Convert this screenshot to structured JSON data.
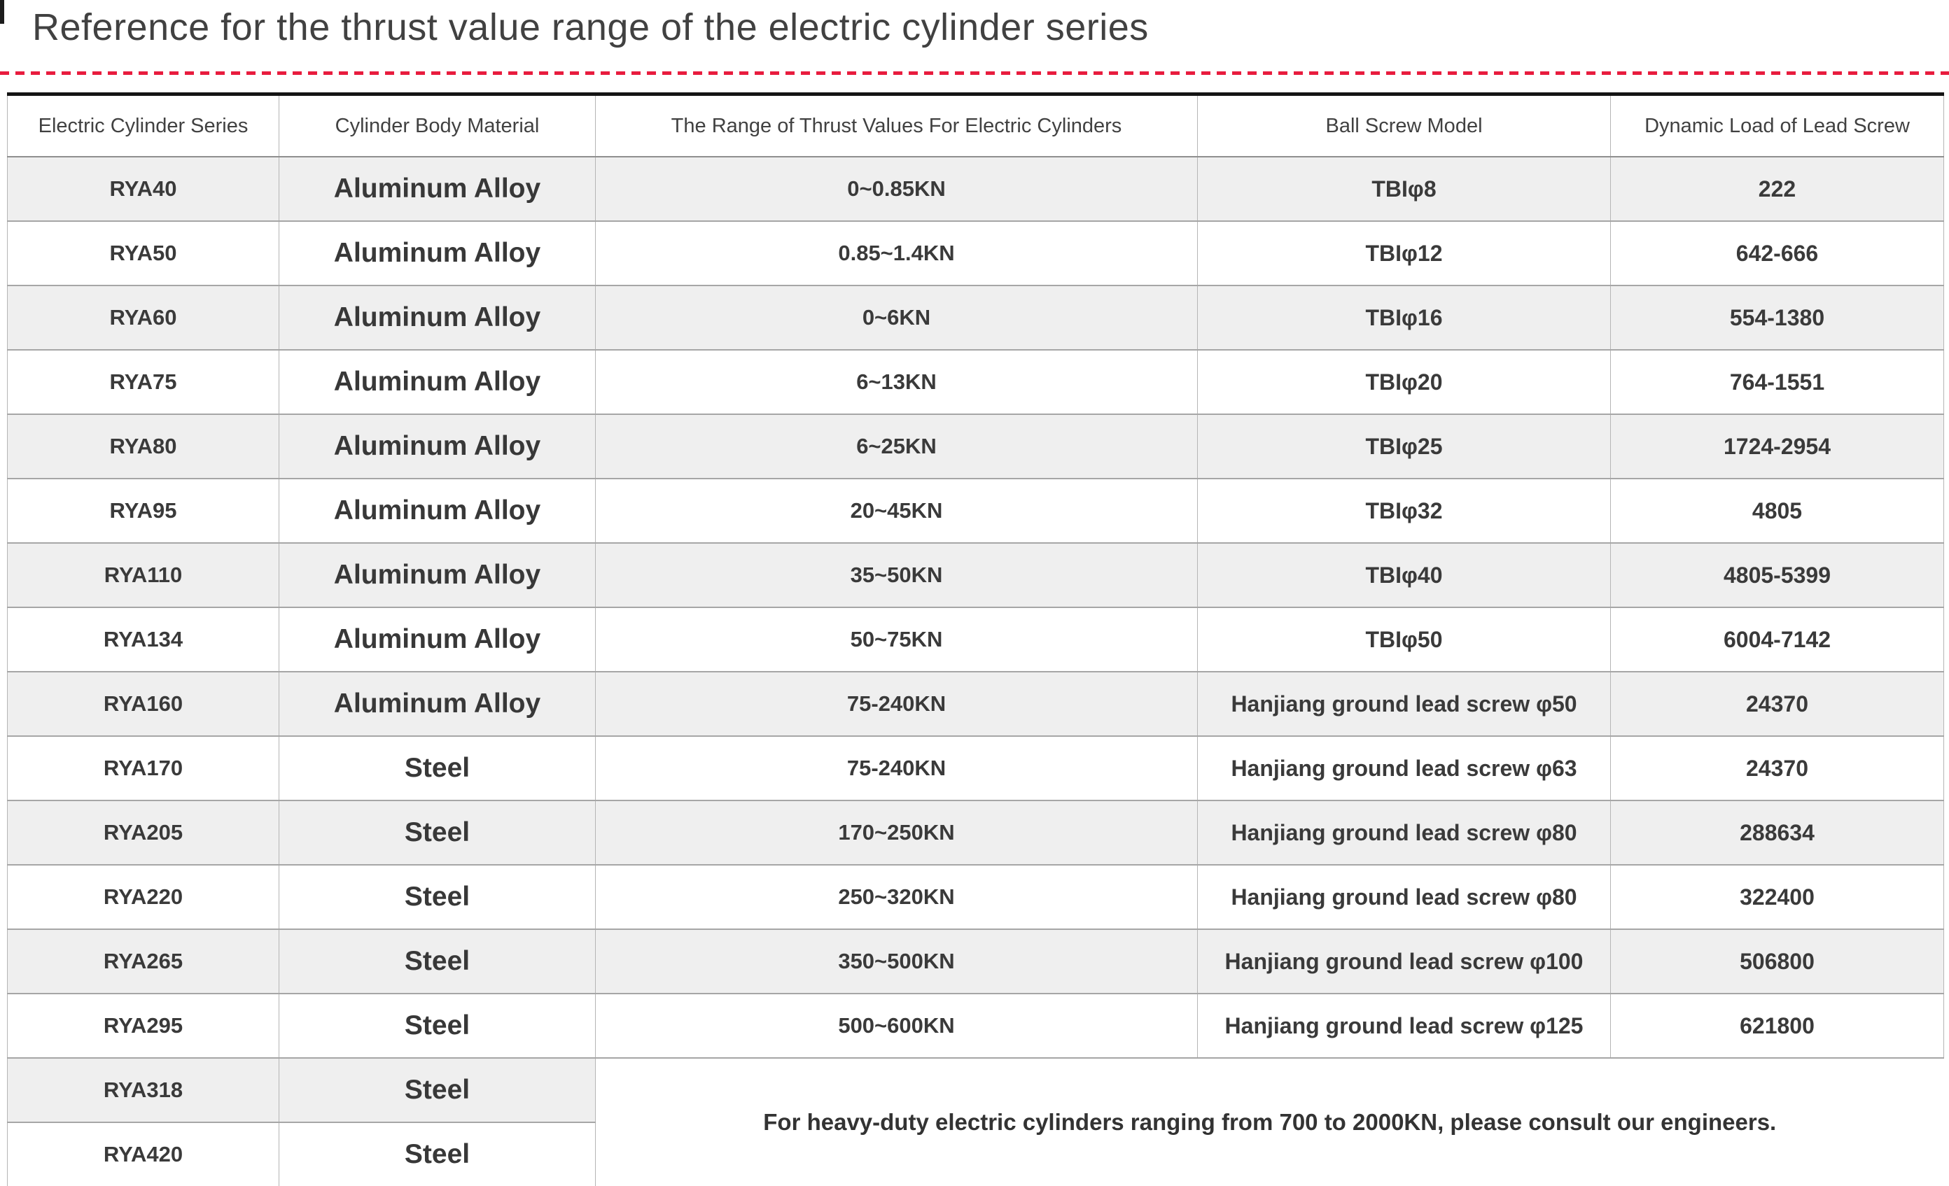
{
  "page": {
    "title": "Reference for the thrust value range of the electric cylinder series",
    "accent_color": "#e81c3e",
    "stripe_color": "#efefef"
  },
  "table": {
    "headers": [
      "Electric Cylinder Series",
      "Cylinder Body Material",
      "The Range of Thrust Values For Electric Cylinders",
      "Ball Screw Model",
      "Dynamic Load of Lead Screw"
    ],
    "rows": [
      {
        "series": "RYA40",
        "material": "Aluminum Alloy",
        "thrust": "0~0.85KN",
        "screw": "TBIφ8",
        "load": "222"
      },
      {
        "series": "RYA50",
        "material": "Aluminum Alloy",
        "thrust": "0.85~1.4KN",
        "screw": "TBIφ12",
        "load": "642-666"
      },
      {
        "series": "RYA60",
        "material": "Aluminum Alloy",
        "thrust": "0~6KN",
        "screw": "TBIφ16",
        "load": "554-1380"
      },
      {
        "series": "RYA75",
        "material": "Aluminum Alloy",
        "thrust": "6~13KN",
        "screw": "TBIφ20",
        "load": "764-1551"
      },
      {
        "series": "RYA80",
        "material": "Aluminum Alloy",
        "thrust": "6~25KN",
        "screw": "TBIφ25",
        "load": "1724-2954"
      },
      {
        "series": "RYA95",
        "material": "Aluminum Alloy",
        "thrust": "20~45KN",
        "screw": "TBIφ32",
        "load": "4805"
      },
      {
        "series": "RYA110",
        "material": "Aluminum Alloy",
        "thrust": "35~50KN",
        "screw": "TBIφ40",
        "load": "4805-5399"
      },
      {
        "series": "RYA134",
        "material": "Aluminum Alloy",
        "thrust": "50~75KN",
        "screw": "TBIφ50",
        "load": "6004-7142"
      },
      {
        "series": "RYA160",
        "material": "Aluminum Alloy",
        "thrust": "75-240KN",
        "screw": "Hanjiang ground lead screw φ50",
        "load": "24370"
      },
      {
        "series": "RYA170",
        "material": "Steel",
        "thrust": "75-240KN",
        "screw": "Hanjiang ground lead screw φ63",
        "load": "24370"
      },
      {
        "series": "RYA205",
        "material": "Steel",
        "thrust": "170~250KN",
        "screw": "Hanjiang ground lead screw φ80",
        "load": "288634"
      },
      {
        "series": "RYA220",
        "material": "Steel",
        "thrust": "250~320KN",
        "screw": "Hanjiang ground lead screw φ80",
        "load": "322400"
      },
      {
        "series": "RYA265",
        "material": "Steel",
        "thrust": "350~500KN",
        "screw": "Hanjiang ground lead screw φ100",
        "load": "506800"
      },
      {
        "series": "RYA295",
        "material": "Steel",
        "thrust": "500~600KN",
        "screw": "Hanjiang ground lead screw φ125",
        "load": "621800"
      },
      {
        "series": "RYA318",
        "material": "Steel",
        "merged": true
      },
      {
        "series": "RYA420",
        "material": "Steel"
      }
    ],
    "note": "For heavy-duty electric cylinders ranging from 700 to 2000KN, please consult our engineers."
  }
}
